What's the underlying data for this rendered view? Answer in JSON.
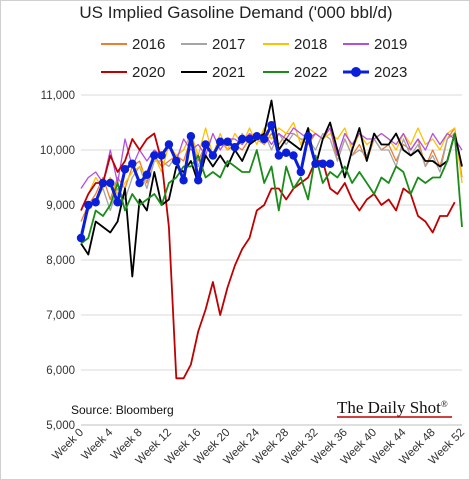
{
  "chart_data": {
    "type": "line",
    "title": "US Implied Gasoline Demand ('000 bbl/d)",
    "source": "Source: Bloomberg",
    "brand": "The Daily Shot",
    "brand_mark": "®",
    "xlabel": "",
    "ylabel": "",
    "ylim": [
      5000,
      11000
    ],
    "yticks": [
      "5,000",
      "6,000",
      "7,000",
      "8,000",
      "9,000",
      "10,000",
      "11,000"
    ],
    "xticks": [
      "Week 0",
      "Week 4",
      "Week 8",
      "Week 12",
      "Week 16",
      "Week 20",
      "Week 24",
      "Week 28",
      "Week 32",
      "Week 36",
      "Week 40",
      "Week 44",
      "Week 48",
      "Week 52"
    ],
    "legend_placement": "top",
    "grid": "horizontal",
    "series": [
      {
        "name": "2016",
        "color": "#ed7d31",
        "width": 1.3,
        "values": [
          8700,
          9000,
          9200,
          9500,
          9100,
          9500,
          9300,
          9700,
          9800,
          9400,
          9900,
          9700,
          9800,
          9900,
          9800,
          10200,
          9800,
          10100,
          9900,
          10200,
          10000,
          10100,
          10000,
          10200,
          10200,
          10100,
          10300,
          10100,
          10300,
          10300,
          10200,
          10100,
          10300,
          10200,
          10400,
          9800,
          10200,
          9900,
          10100,
          9800,
          10200,
          10000,
          10100,
          9800,
          10100,
          10000,
          10200,
          9700,
          10000,
          9700,
          10200,
          10400,
          9500
        ]
      },
      {
        "name": "2017",
        "color": "#a5a5a5",
        "width": 1.3,
        "values": [
          8500,
          8900,
          9100,
          9300,
          8900,
          9300,
          9100,
          9500,
          9700,
          9300,
          9800,
          9800,
          9700,
          9900,
          10000,
          10300,
          9700,
          10100,
          9900,
          10100,
          10200,
          10000,
          10300,
          10100,
          10200,
          10300,
          10000,
          10300,
          10100,
          10300,
          10200,
          10200,
          10000,
          10300,
          10200,
          9800,
          10200,
          9900,
          10000,
          9900,
          10200,
          10000,
          10000,
          9700,
          10200,
          9900,
          10100,
          9700,
          9900,
          9600,
          10200,
          10300,
          9700
        ]
      },
      {
        "name": "2018",
        "color": "#ffc000",
        "width": 1.3,
        "values": [
          8900,
          9200,
          9500,
          9300,
          9500,
          9200,
          9400,
          9600,
          9700,
          9500,
          9900,
          9600,
          10100,
          9900,
          10000,
          10300,
          9900,
          10400,
          9900,
          10300,
          10000,
          10300,
          10100,
          10400,
          10100,
          10400,
          10200,
          10400,
          10300,
          10500,
          10100,
          10400,
          10300,
          10200,
          10300,
          10200,
          10400,
          10000,
          10300,
          10100,
          10200,
          10300,
          10200,
          10000,
          10300,
          10100,
          10400,
          10100,
          10200,
          10000,
          10300,
          10400,
          9400
        ]
      },
      {
        "name": "2019",
        "color": "#b24fe0",
        "width": 1.3,
        "values": [
          9300,
          9500,
          9600,
          9400,
          10000,
          9400,
          10200,
          9700,
          10000,
          9800,
          10000,
          9900,
          10100,
          9800,
          10200,
          10000,
          10100,
          9900,
          10300,
          10000,
          10200,
          10200,
          10100,
          10300,
          10200,
          10300,
          10100,
          10300,
          10200,
          10400,
          10300,
          10200,
          10300,
          10200,
          10400,
          9900,
          10300,
          10100,
          10300,
          10200,
          10200,
          10300,
          10200,
          10100,
          10300,
          10000,
          10200,
          10000,
          10300,
          10100,
          10300,
          10200,
          10000
        ]
      },
      {
        "name": "2020",
        "color": "#c00000",
        "width": 1.8,
        "values": [
          8900,
          9200,
          9400,
          9400,
          9900,
          9600,
          9800,
          10200,
          10000,
          10200,
          10300,
          9800,
          8600,
          5850,
          5850,
          6100,
          6700,
          7100,
          7600,
          7000,
          7500,
          7900,
          8200,
          8400,
          8900,
          9000,
          9300,
          9300,
          9100,
          9300,
          9400,
          9500,
          9800,
          9800,
          9300,
          9200,
          9400,
          9100,
          8900,
          9100,
          9200,
          9000,
          9100,
          8900,
          9300,
          9200,
          8800,
          8700,
          8500,
          8800,
          8800,
          9050
        ]
      },
      {
        "name": "2021",
        "color": "#000000",
        "width": 1.8,
        "values": [
          8300,
          8100,
          8700,
          8600,
          8500,
          8700,
          9300,
          7700,
          9100,
          8900,
          9600,
          9000,
          9100,
          9700,
          9600,
          9800,
          9400,
          9900,
          9700,
          9900,
          9700,
          10000,
          9800,
          10100,
          10200,
          10300,
          10900,
          10000,
          10200,
          10100,
          10000,
          10400,
          9700,
          10200,
          10500,
          10000,
          9500,
          10000,
          10400,
          9800,
          10300,
          10100,
          10100,
          10300,
          10000,
          9900,
          10000,
          9800,
          9800,
          9700,
          9800,
          10300,
          9700
        ]
      },
      {
        "name": "2022",
        "color": "#1a8c1a",
        "width": 1.8,
        "values": [
          8300,
          8400,
          8900,
          8800,
          9000,
          9400,
          8900,
          9200,
          9000,
          9100,
          9200,
          9000,
          9400,
          9500,
          9700,
          9700,
          9900,
          9500,
          9600,
          9500,
          9800,
          9700,
          9600,
          9600,
          10000,
          9400,
          9700,
          8900,
          9700,
          9300,
          9500,
          9100,
          9900,
          9400,
          9600,
          9500,
          9700,
          9400,
          9600,
          9400,
          9200,
          9500,
          9400,
          9700,
          9600,
          9200,
          9500,
          9400,
          9500,
          9500,
          9800,
          10300,
          8600
        ]
      },
      {
        "name": "2023",
        "color": "#0b1fd9",
        "width": 3.0,
        "markers": true,
        "values": [
          8400,
          9000,
          9050,
          9400,
          9400,
          9050,
          9650,
          9750,
          9400,
          9550,
          9900,
          9900,
          10100,
          9800,
          9450,
          10250,
          9450,
          10100,
          9900,
          10150,
          10150,
          10050,
          10200,
          10200,
          10250,
          10200,
          10450,
          9900,
          9950,
          9900,
          9600,
          10250,
          9750,
          9750,
          9750
        ]
      }
    ]
  }
}
